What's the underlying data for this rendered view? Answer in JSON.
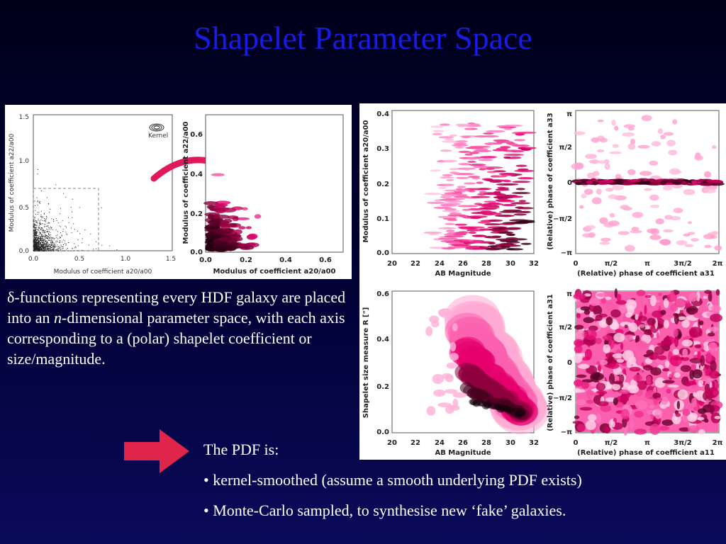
{
  "slide": {
    "title": "Shapelet Parameter Space",
    "body_prefix": "δ",
    "body_text_1": "-functions representing every HDF galaxy are placed into an ",
    "body_italic": "n",
    "body_text_2": "-dimensional parameter space, with each axis corresponding to a (polar) shapelet coefficient or size/magnitude.",
    "pdf_heading": "The PDF is:",
    "bullets": [
      "• kernel-smoothed (assume a smooth underlying PDF exists)",
      "• Monte-Carlo sampled, to synthesise new ‘fake’ galaxies."
    ]
  },
  "colors": {
    "title": "#1a1ae6",
    "density_dark": "#1a000d",
    "density_mid": "#e0006a",
    "density_light": "#ffc2de",
    "curved_arrow": "#e0195a",
    "big_arrow": "#e0254a"
  },
  "figures": {
    "left": {
      "scatter_xlabel": "Modulus of coefficient a20/a00",
      "scatter_ylabel": "Modulus of coefficient a22/a00",
      "scatter_xticks": [
        "0.0",
        "0.5",
        "1.0",
        "1.5"
      ],
      "scatter_yticks": [
        "0.0",
        "0.5",
        "1.0",
        "1.5"
      ],
      "kernel_label": "Kernel",
      "density_xlabel": "Modulus of coefficient a20/a00",
      "density_ylabel": "Modulus of coefficient a22/a00",
      "density_xticks": [
        "0.0",
        "0.2",
        "0.4",
        "0.6"
      ],
      "density_yticks": [
        "0.0",
        "0.2",
        "0.4",
        "0.6"
      ]
    },
    "right": {
      "p1_xlabel": "AB Magnitude",
      "p1_ylabel": "Modulus of coefficient a20/a00",
      "p1_xticks": [
        "20",
        "22",
        "24",
        "26",
        "28",
        "30",
        "32"
      ],
      "p1_yticks": [
        "0.0",
        "0.1",
        "0.2",
        "0.3",
        "0.4"
      ],
      "p2_xlabel": "(Relative) phase of coefficient a31",
      "p2_ylabel": "(Relative) phase of coefficient a33",
      "phase_ticks": [
        "0",
        "π/2",
        "π",
        "3π/2",
        "2π"
      ],
      "phase_yticks": [
        "−π",
        "−π/2",
        "0",
        "π/2",
        "π"
      ],
      "p3_xlabel": "AB Magnitude",
      "p3_ylabel": "Shapelet size measure R [\"]",
      "p3_xticks": [
        "20",
        "22",
        "24",
        "26",
        "28",
        "30",
        "32"
      ],
      "p3_yticks": [
        "0.0",
        "0.2",
        "0.4",
        "0.6"
      ],
      "p4_xlabel": "(Relative) phase of coefficient a11",
      "p4_ylabel": "(Relative) phase of coefficient a31"
    }
  }
}
